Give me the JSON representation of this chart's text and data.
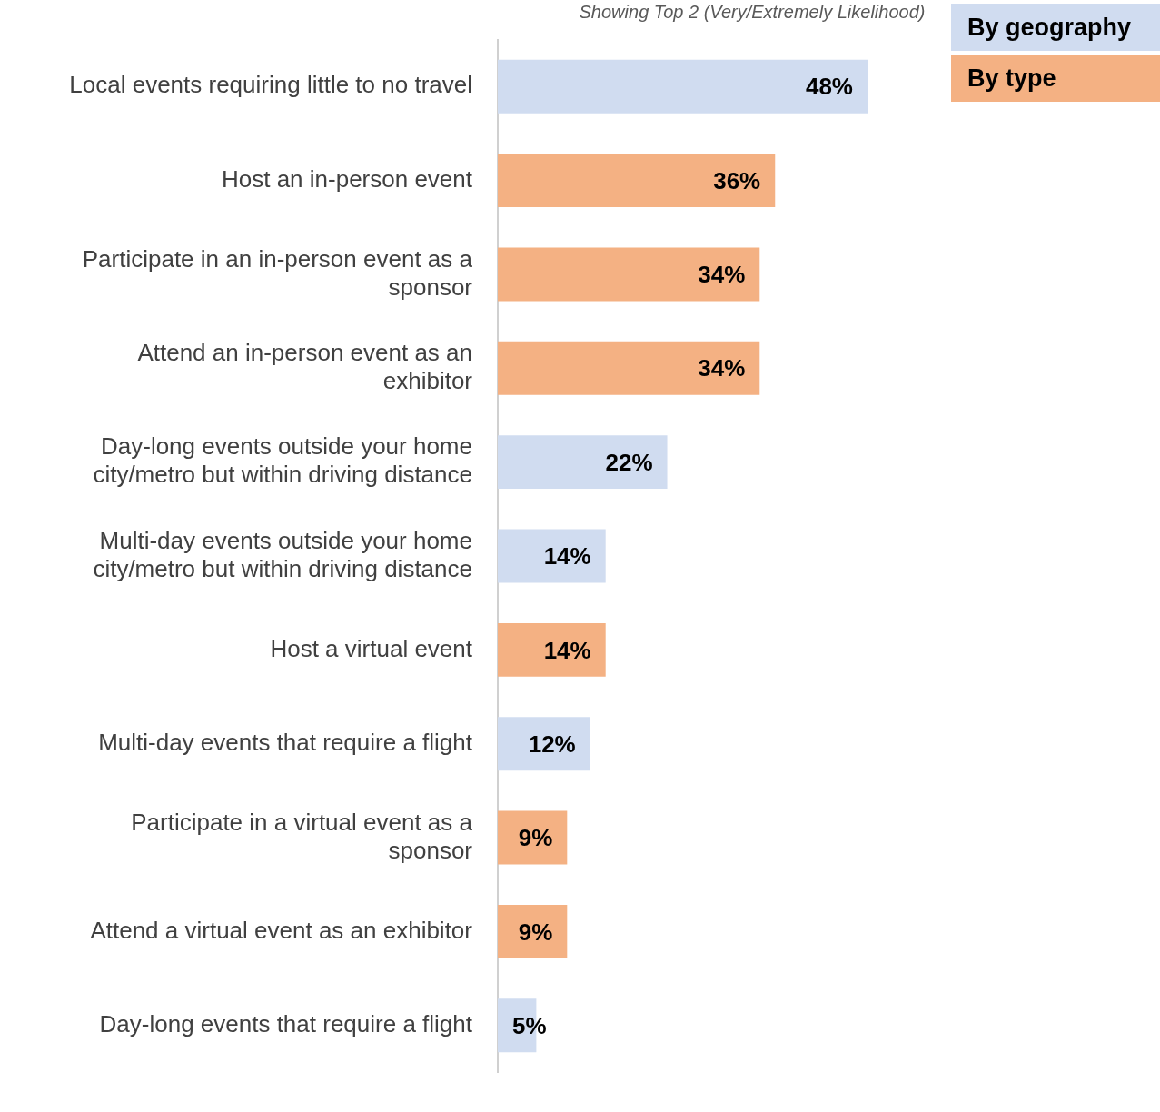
{
  "chart_data": {
    "type": "bar",
    "orientation": "horizontal",
    "subtitle": "Showing Top 2 (Very/Extremely Likelihood)",
    "categories": [
      "Local events requiring little to no travel",
      "Host an in-person event",
      "Participate in an in-person event as a sponsor",
      "Attend an in-person event as an exhibitor",
      "Day-long events outside your home city/metro but within driving distance",
      "Multi-day events outside your home city/metro but within driving distance",
      "Host a virtual event",
      "Multi-day events that require a flight",
      "Participate in a virtual event as a sponsor",
      "Attend a virtual event as an exhibitor",
      "Day-long events that require a flight"
    ],
    "series": [
      {
        "name": "By geography",
        "color": "#d0dcf0",
        "values": [
          48,
          null,
          null,
          null,
          22,
          14,
          null,
          12,
          null,
          null,
          5
        ],
        "value_labels": [
          "48%",
          null,
          null,
          null,
          "22%",
          "14%",
          null,
          "12%",
          null,
          null,
          "5%"
        ]
      },
      {
        "name": "By type",
        "color": "#f4b183",
        "values": [
          null,
          36,
          34,
          34,
          null,
          null,
          14,
          null,
          9,
          9,
          null
        ],
        "value_labels": [
          null,
          "36%",
          "34%",
          "34%",
          null,
          null,
          "14%",
          null,
          "9%",
          "9%",
          null
        ]
      }
    ],
    "legend": "top right"
  }
}
